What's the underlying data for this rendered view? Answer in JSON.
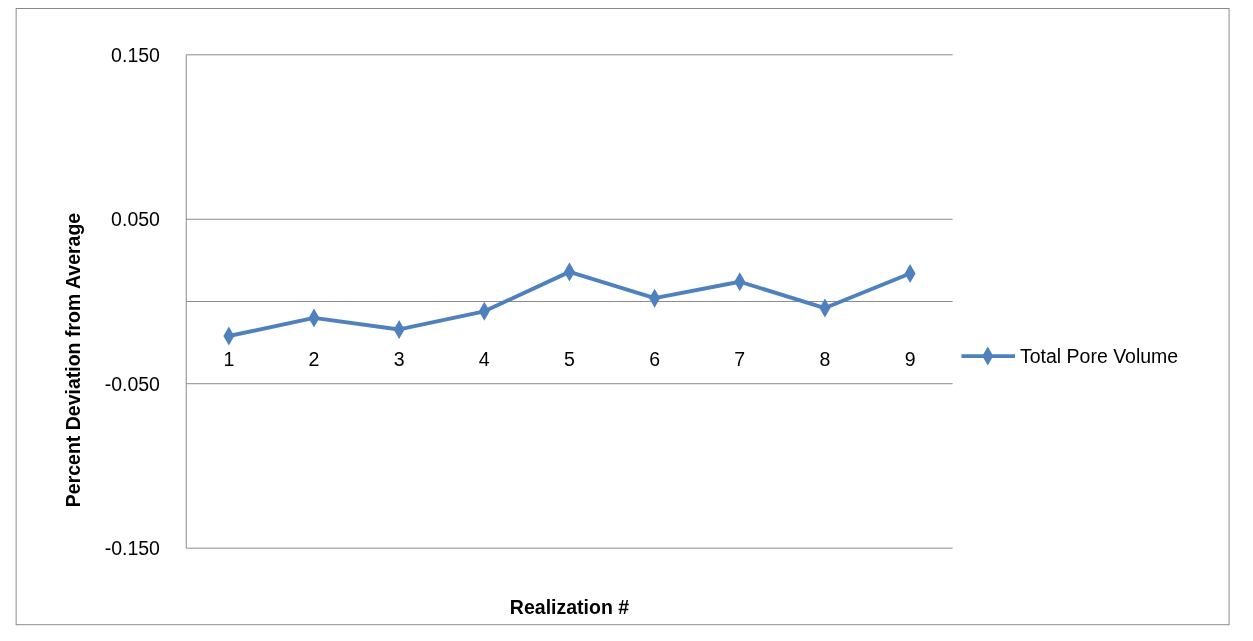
{
  "chart_data": {
    "type": "line",
    "xlabel": "Realization #",
    "ylabel": "Percent Deviation from Average",
    "categories": [
      "1",
      "2",
      "3",
      "4",
      "5",
      "6",
      "7",
      "8",
      "9"
    ],
    "series": [
      {
        "name": "Total Pore Volume",
        "color": "#4f81bd",
        "values": [
          -0.021,
          -0.01,
          -0.017,
          -0.006,
          0.018,
          0.002,
          0.012,
          -0.004,
          0.017
        ]
      }
    ],
    "ylim": [
      -0.15,
      0.15
    ],
    "yticks": [
      {
        "value": -0.15,
        "label": "-0.150"
      },
      {
        "value": -0.05,
        "label": "-0.050"
      },
      {
        "value": 0.05,
        "label": "0.050"
      },
      {
        "value": 0.15,
        "label": "0.150"
      }
    ],
    "grid": "y",
    "legend": "right",
    "marker": "diamond",
    "line_style": "solid"
  }
}
